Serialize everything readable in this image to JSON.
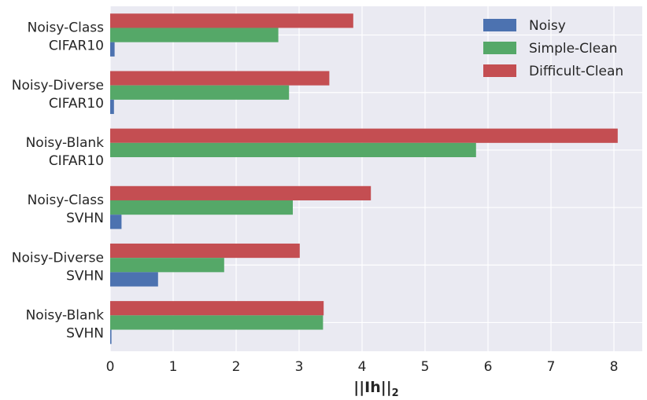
{
  "chart_data": {
    "type": "bar",
    "orientation": "horizontal",
    "categories": [
      [
        "Noisy-Class",
        "CIFAR10"
      ],
      [
        "Noisy-Diverse",
        "CIFAR10"
      ],
      [
        "Noisy-Blank",
        "CIFAR10"
      ],
      [
        "Noisy-Class",
        "SVHN"
      ],
      [
        "Noisy-Diverse",
        "SVHN"
      ],
      [
        "Noisy-Blank",
        "SVHN"
      ]
    ],
    "series": [
      {
        "name": "Noisy",
        "color": "#4c72b0",
        "values": [
          0.07,
          0.06,
          0.0,
          0.18,
          0.76,
          0.02
        ]
      },
      {
        "name": "Simple-Clean",
        "color": "#55a868",
        "values": [
          2.67,
          2.84,
          5.81,
          2.9,
          1.81,
          3.38
        ]
      },
      {
        "name": "Difficult-Clean",
        "color": "#c44e52",
        "values": [
          3.86,
          3.48,
          8.06,
          4.14,
          3.01,
          3.39
        ]
      }
    ],
    "xlabel": "||Ih||",
    "xlabel_sub": "2",
    "xlim": [
      0,
      8.45
    ],
    "xticks": [
      "0",
      "1",
      "2",
      "3",
      "4",
      "5",
      "6",
      "7",
      "8"
    ],
    "grid": true,
    "legend": "top-right",
    "colors": {
      "background": "#eaeaf2",
      "grid": "#ffffff"
    }
  }
}
